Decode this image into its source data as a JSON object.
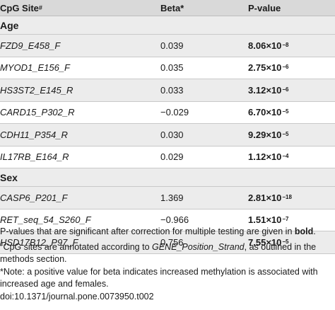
{
  "header": {
    "col_site": "CpG Site",
    "col_site_mark": "#",
    "col_beta": "Beta*",
    "col_pvalue": "P-value"
  },
  "sections": [
    {
      "title": "Age",
      "rows": [
        {
          "site": "FZD9_E458_F",
          "beta": "0.039",
          "p_mantissa": "8.06",
          "p_times": "×10",
          "p_exp": "−8"
        },
        {
          "site": "MYOD1_E156_F",
          "beta": "0.035",
          "p_mantissa": "2.75",
          "p_times": "×10",
          "p_exp": "−6"
        },
        {
          "site": "HS3ST2_E145_R",
          "beta": "0.033",
          "p_mantissa": "3.12",
          "p_times": "×10",
          "p_exp": "−6"
        },
        {
          "site": "CARD15_P302_R",
          "beta": "−0.029",
          "p_mantissa": "6.70",
          "p_times": "×10",
          "p_exp": "−5"
        },
        {
          "site": "CDH11_P354_R",
          "beta": "0.030",
          "p_mantissa": "9.29",
          "p_times": "×10",
          "p_exp": "−5"
        },
        {
          "site": "IL17RB_E164_R",
          "beta": "0.029",
          "p_mantissa": "1.12",
          "p_times": "×10",
          "p_exp": "−4"
        }
      ]
    },
    {
      "title": "Sex",
      "rows": [
        {
          "site": "CASP6_P201_F",
          "beta": "1.369",
          "p_mantissa": "2.81",
          "p_times": "×10",
          "p_exp": "−18"
        },
        {
          "site": "RET_seq_54_S260_F",
          "beta": "−0.966",
          "p_mantissa": "1.51",
          "p_times": "×10",
          "p_exp": "−7"
        },
        {
          "site": "HSD17B12_P97_F",
          "beta": "0.756",
          "p_mantissa": "7.55",
          "p_times": "×10",
          "p_exp": "−5"
        }
      ]
    }
  ],
  "notes": {
    "line1_a": "P-values that are significant after correction for multiple testing are given in ",
    "line1_bold": "bold",
    "line1_end": ".",
    "line2_mark": "#",
    "line2_a": "CpG sites are annotated according to ",
    "line2_ital": "GENE_Position_Strand",
    "line2_b": ", as outlined in the methods section.",
    "line3": "*Note: a positive value for beta indicates increased methylation is associated with increased age and females.",
    "doi": "doi:10.1371/journal.pone.0073950.t002"
  }
}
